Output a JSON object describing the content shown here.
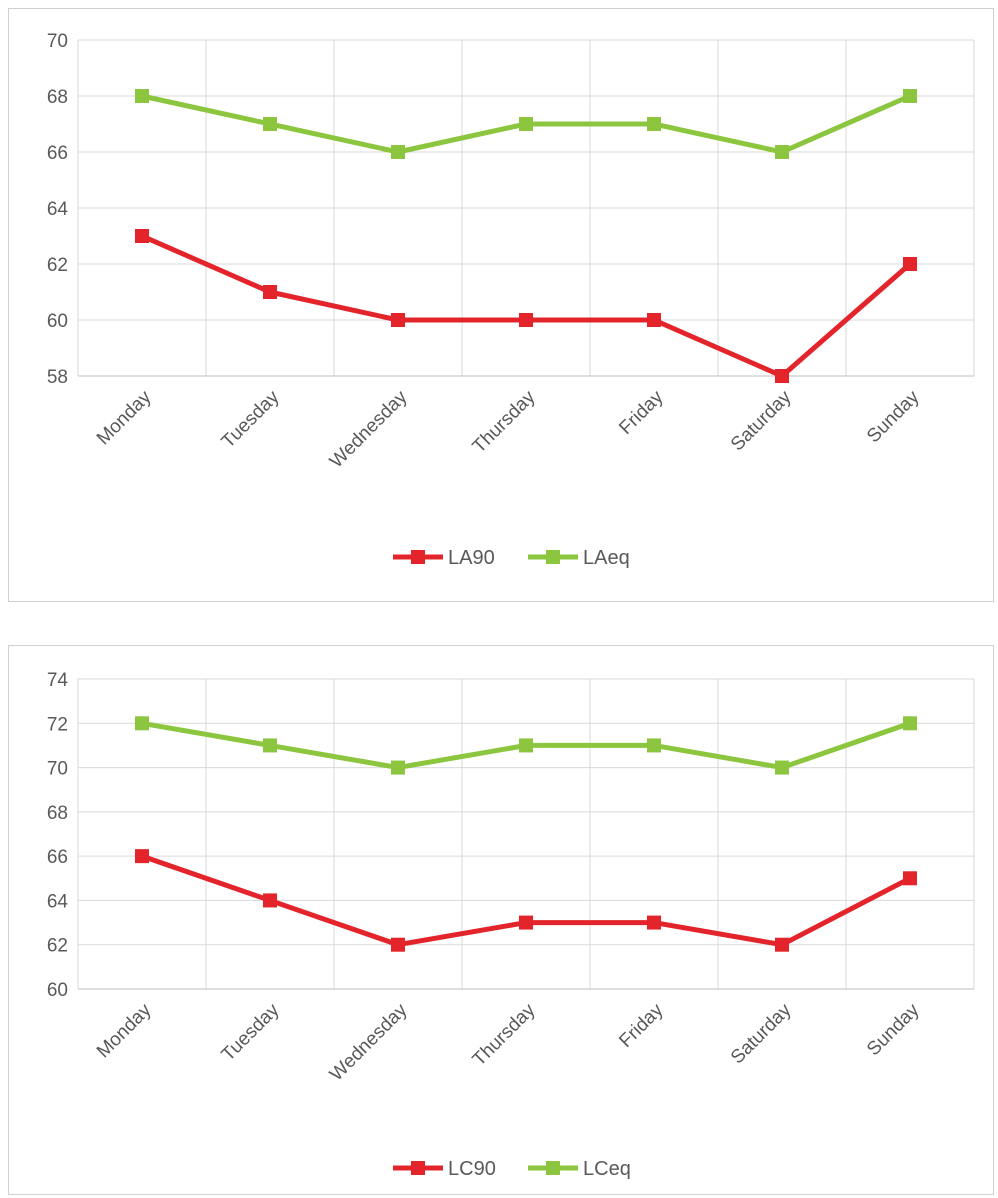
{
  "chart_data": [
    {
      "type": "line",
      "title": "",
      "xlabel": "",
      "ylabel": "",
      "categories": [
        "Monday",
        "Tuesday",
        "Wednesday",
        "Thursday",
        "Friday",
        "Saturday",
        "Sunday"
      ],
      "ylim": [
        58,
        70
      ],
      "yticks": [
        "58",
        "60",
        "62",
        "64",
        "66",
        "68",
        "70"
      ],
      "grid": true,
      "legend_position": "bottom",
      "series": [
        {
          "name": "LA90",
          "color": "#e3252b",
          "values": [
            63,
            61,
            60,
            60,
            60,
            58,
            62
          ]
        },
        {
          "name": "LAeq",
          "color": "#8cc63f",
          "values": [
            68,
            67,
            66,
            67,
            67,
            66,
            68
          ]
        }
      ]
    },
    {
      "type": "line",
      "title": "",
      "xlabel": "",
      "ylabel": "",
      "categories": [
        "Monday",
        "Tuesday",
        "Wednesday",
        "Thursday",
        "Friday",
        "Saturday",
        "Sunday"
      ],
      "ylim": [
        60,
        74
      ],
      "yticks": [
        "60",
        "62",
        "64",
        "66",
        "68",
        "70",
        "72",
        "74"
      ],
      "grid": true,
      "legend_position": "bottom",
      "series": [
        {
          "name": "LC90",
          "color": "#e3252b",
          "values": [
            66,
            64,
            62,
            63,
            63,
            62,
            65
          ]
        },
        {
          "name": "LCeq",
          "color": "#8cc63f",
          "values": [
            72,
            71,
            70,
            71,
            71,
            70,
            72
          ]
        }
      ]
    }
  ]
}
